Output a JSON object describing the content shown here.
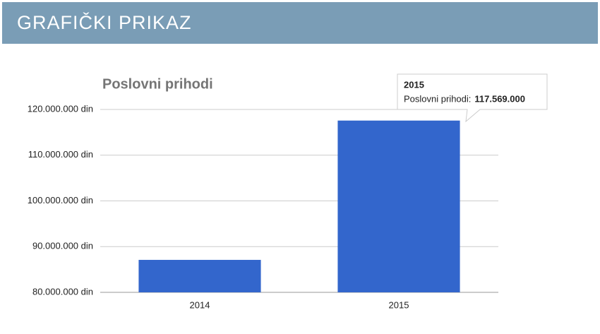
{
  "header": {
    "title": "GRAFIČKI PRIKAZ"
  },
  "chart_data": {
    "type": "bar",
    "title": "Poslovni prihodi",
    "categories": [
      "2014",
      "2015"
    ],
    "series": [
      {
        "name": "Poslovni prihodi",
        "color": "#3366cc",
        "values": [
          87100000,
          117569000
        ],
        "value_labels": [
          null,
          "117.569.000"
        ]
      }
    ],
    "tooltip_label": "Poslovni prihodi:",
    "ylim": [
      80000000,
      120000000
    ],
    "yticks": [
      {
        "value": 80000000,
        "label": "80.000.000 din"
      },
      {
        "value": 90000000,
        "label": "90.000.000 din"
      },
      {
        "value": 100000000,
        "label": "100.000.000 din"
      },
      {
        "value": 110000000,
        "label": "110.000.000 din"
      },
      {
        "value": 120000000,
        "label": "120.000.000 din"
      }
    ],
    "grid": true
  }
}
